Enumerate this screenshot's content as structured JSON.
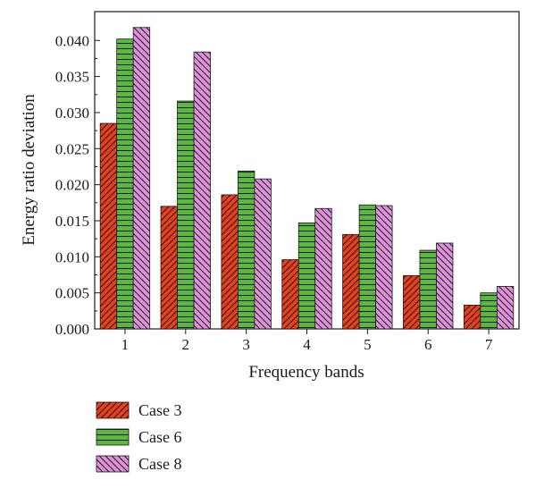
{
  "chart_data": {
    "type": "bar",
    "title": "",
    "xlabel": "Frequency bands",
    "ylabel": "Energy ratio deviation",
    "categories": [
      "1",
      "2",
      "3",
      "4",
      "5",
      "6",
      "7"
    ],
    "ylim": [
      0,
      0.044
    ],
    "yticks": [
      "0.000",
      "0.005",
      "0.010",
      "0.015",
      "0.020",
      "0.025",
      "0.030",
      "0.035",
      "0.040"
    ],
    "grid": false,
    "legend_position": "bottom-left",
    "series": [
      {
        "name": "Case 3",
        "color": "#e8401c",
        "pattern": "diagonal-hatch",
        "values": [
          0.0285,
          0.017,
          0.0186,
          0.0096,
          0.0131,
          0.0074,
          0.0033
        ]
      },
      {
        "name": "Case 6",
        "color": "#5cb83c",
        "pattern": "horizontal-lines",
        "values": [
          0.0402,
          0.0316,
          0.0219,
          0.0147,
          0.0172,
          0.0109,
          0.005
        ]
      },
      {
        "name": "Case 8",
        "color": "#e090dc",
        "pattern": "back-diagonal-hatch",
        "values": [
          0.0418,
          0.0384,
          0.0208,
          0.0167,
          0.0171,
          0.0119,
          0.0059
        ]
      }
    ]
  }
}
